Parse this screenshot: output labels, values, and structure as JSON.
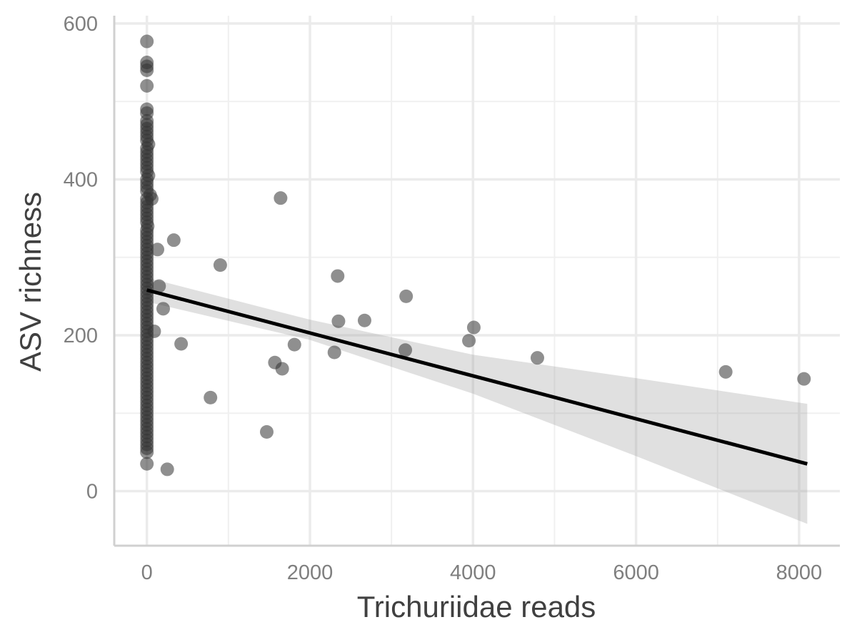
{
  "chart_data": {
    "type": "scatter",
    "title": "",
    "xlabel": "Trichuriidae reads",
    "ylabel": "ASV richness",
    "xlim": [
      -400,
      8500
    ],
    "ylim": [
      -70,
      610
    ],
    "x_ticks": [
      0,
      2000,
      4000,
      6000,
      8000
    ],
    "x_tick_labels": [
      "0",
      "2000",
      "4000",
      "6000",
      "8000"
    ],
    "y_ticks": [
      0,
      200,
      400,
      600
    ],
    "y_tick_labels": [
      "0",
      "200",
      "400",
      "600"
    ],
    "grid": true,
    "legend": "none",
    "colors": {
      "points": "#333333",
      "fit_line": "#000000",
      "ci_band": "#999999"
    },
    "points": [
      [
        0,
        577
      ],
      [
        0,
        550
      ],
      [
        0,
        545
      ],
      [
        0,
        540
      ],
      [
        0,
        520
      ],
      [
        0,
        490
      ],
      [
        0,
        485
      ],
      [
        0,
        475
      ],
      [
        0,
        470
      ],
      [
        0,
        465
      ],
      [
        0,
        460
      ],
      [
        0,
        455
      ],
      [
        0,
        450
      ],
      [
        20,
        445
      ],
      [
        0,
        440
      ],
      [
        0,
        435
      ],
      [
        0,
        430
      ],
      [
        0,
        425
      ],
      [
        0,
        420
      ],
      [
        0,
        415
      ],
      [
        0,
        410
      ],
      [
        20,
        405
      ],
      [
        0,
        400
      ],
      [
        0,
        395
      ],
      [
        0,
        390
      ],
      [
        0,
        385
      ],
      [
        40,
        380
      ],
      [
        0,
        375
      ],
      [
        0,
        370
      ],
      [
        0,
        365
      ],
      [
        0,
        360
      ],
      [
        0,
        355
      ],
      [
        0,
        350
      ],
      [
        0,
        345
      ],
      [
        10,
        340
      ],
      [
        0,
        335
      ],
      [
        0,
        330
      ],
      [
        0,
        325
      ],
      [
        0,
        320
      ],
      [
        0,
        315
      ],
      [
        0,
        310
      ],
      [
        0,
        305
      ],
      [
        0,
        300
      ],
      [
        0,
        295
      ],
      [
        0,
        290
      ],
      [
        0,
        285
      ],
      [
        0,
        280
      ],
      [
        0,
        275
      ],
      [
        0,
        270
      ],
      [
        0,
        265
      ],
      [
        0,
        260
      ],
      [
        0,
        255
      ],
      [
        0,
        250
      ],
      [
        0,
        245
      ],
      [
        0,
        240
      ],
      [
        0,
        235
      ],
      [
        0,
        230
      ],
      [
        0,
        225
      ],
      [
        0,
        220
      ],
      [
        0,
        215
      ],
      [
        0,
        210
      ],
      [
        0,
        205
      ],
      [
        0,
        200
      ],
      [
        0,
        195
      ],
      [
        0,
        190
      ],
      [
        0,
        185
      ],
      [
        0,
        180
      ],
      [
        0,
        175
      ],
      [
        0,
        170
      ],
      [
        0,
        165
      ],
      [
        0,
        160
      ],
      [
        0,
        155
      ],
      [
        0,
        150
      ],
      [
        0,
        145
      ],
      [
        0,
        140
      ],
      [
        0,
        135
      ],
      [
        0,
        130
      ],
      [
        0,
        125
      ],
      [
        0,
        120
      ],
      [
        0,
        115
      ],
      [
        0,
        110
      ],
      [
        0,
        105
      ],
      [
        0,
        100
      ],
      [
        0,
        95
      ],
      [
        0,
        90
      ],
      [
        0,
        85
      ],
      [
        0,
        80
      ],
      [
        0,
        75
      ],
      [
        0,
        70
      ],
      [
        0,
        65
      ],
      [
        0,
        60
      ],
      [
        0,
        55
      ],
      [
        0,
        50
      ],
      [
        0,
        35
      ],
      [
        60,
        375
      ],
      [
        130,
        310
      ],
      [
        330,
        322
      ],
      [
        900,
        290
      ],
      [
        1640,
        376
      ],
      [
        2340,
        276
      ],
      [
        3180,
        250
      ],
      [
        150,
        263
      ],
      [
        200,
        234
      ],
      [
        90,
        205
      ],
      [
        420,
        189
      ],
      [
        2350,
        218
      ],
      [
        2670,
        219
      ],
      [
        4010,
        210
      ],
      [
        3950,
        193
      ],
      [
        1570,
        165
      ],
      [
        1660,
        157
      ],
      [
        1810,
        188
      ],
      [
        2300,
        178
      ],
      [
        3170,
        181
      ],
      [
        4790,
        171
      ],
      [
        7100,
        153
      ],
      [
        8060,
        144
      ],
      [
        780,
        120
      ],
      [
        1470,
        76
      ],
      [
        250,
        28
      ]
    ],
    "fit_line": {
      "x": [
        0,
        8100
      ],
      "y": [
        258,
        35
      ]
    },
    "confidence_band": {
      "x": [
        0,
        2000,
        4000,
        6000,
        8100
      ],
      "upper": [
        274,
        220,
        175,
        145,
        112
      ],
      "lower": [
        243,
        194,
        125,
        45,
        -42
      ]
    }
  }
}
